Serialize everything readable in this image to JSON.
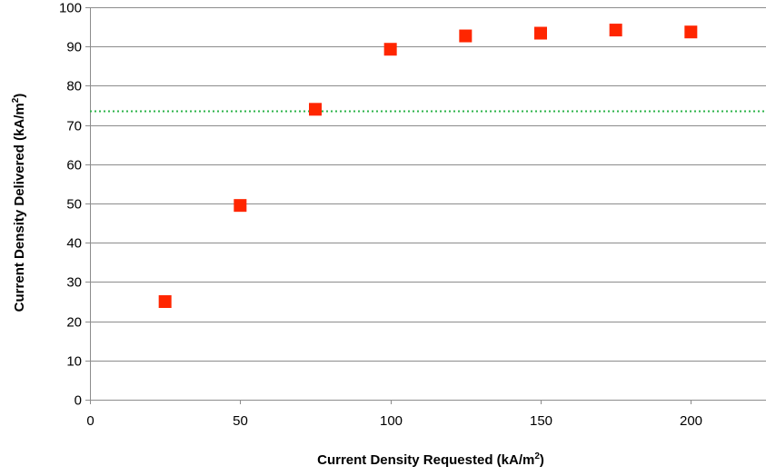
{
  "chart_data": {
    "type": "scatter",
    "title": "",
    "xlabel": "Current Density Requested (kA/m",
    "xlabel_sup": "2",
    "xlabel_suffix": ")",
    "ylabel": "Current Density Delivered (kA/m",
    "ylabel_sup": "2",
    "ylabel_suffix": ")",
    "xlim": [
      0,
      225
    ],
    "ylim": [
      0,
      100
    ],
    "xticks": [
      0,
      50,
      100,
      150,
      200
    ],
    "yticks": [
      0,
      10,
      20,
      30,
      40,
      50,
      60,
      70,
      80,
      90,
      100
    ],
    "grid": true,
    "legend": "none",
    "series": [
      {
        "x": [
          25,
          50,
          75,
          100,
          125,
          150,
          175,
          200
        ],
        "y": [
          25,
          49.5,
          74,
          89.3,
          92.7,
          93.4,
          94.2,
          93.7
        ]
      }
    ],
    "reference_line": {
      "y": 73.5
    },
    "colors": {
      "marker": "#ff2600",
      "reference_line": "#2db34a",
      "grid": "#8c8c8c",
      "axis": "#8c8c8c"
    }
  }
}
